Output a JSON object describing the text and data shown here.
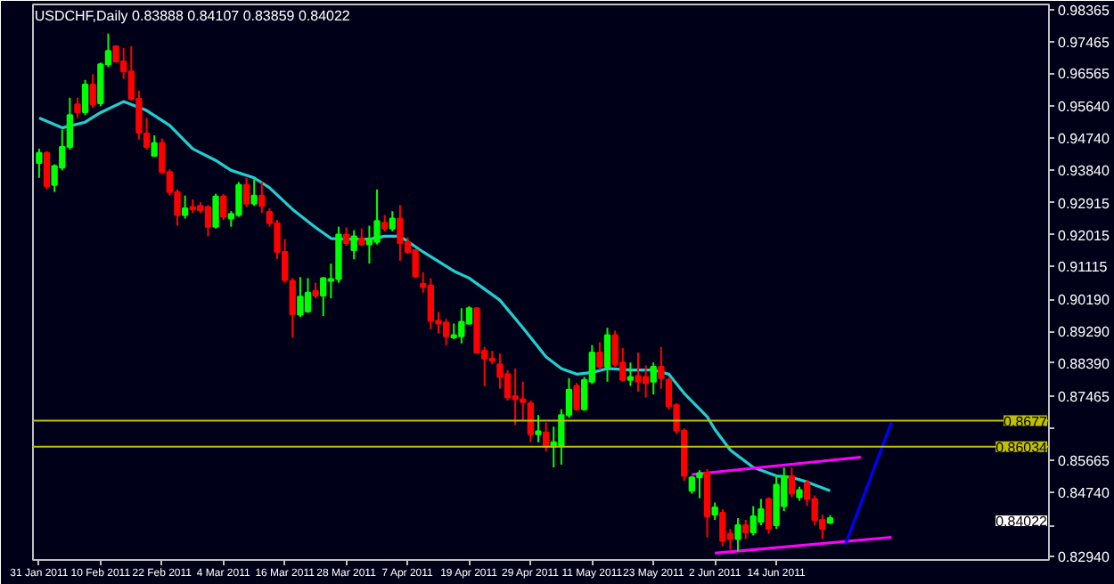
{
  "chart_data": {
    "type": "candlestick",
    "title": "USDCHF,Daily  0.83888 0.84107 0.83859 0.84022",
    "categories": [
      "31 Jan 2011",
      null,
      null,
      null,
      null,
      null,
      null,
      null,
      "10 Feb 2011",
      null,
      null,
      null,
      null,
      null,
      null,
      null,
      "22 Feb 2011",
      null,
      null,
      null,
      null,
      null,
      null,
      null,
      "4 Mar 2011",
      null,
      null,
      null,
      null,
      null,
      null,
      null,
      "16 Mar 2011",
      null,
      null,
      null,
      null,
      null,
      null,
      null,
      "28 Mar 2011",
      null,
      null,
      null,
      null,
      null,
      null,
      null,
      "7 Apr 2011",
      null,
      null,
      null,
      null,
      null,
      null,
      null,
      "19 Apr 2011",
      null,
      null,
      null,
      null,
      null,
      null,
      null,
      "29 Apr 2011",
      null,
      null,
      null,
      null,
      null,
      null,
      null,
      "11 May 2011",
      null,
      null,
      null,
      null,
      null,
      null,
      null,
      "23 May 2011",
      null,
      null,
      null,
      null,
      null,
      null,
      null,
      "2 Jun 2011",
      null,
      null,
      null,
      null,
      null,
      null,
      null,
      "14 Jun 2011",
      null,
      null,
      null,
      null,
      null,
      null,
      null,
      null,
      null,
      null,
      null,
      null,
      null,
      null,
      null,
      null,
      null,
      null,
      null,
      null,
      null,
      null,
      null,
      null,
      null,
      null,
      null,
      null,
      null,
      null,
      null,
      null,
      null,
      null,
      null
    ],
    "ohlc": [
      [
        0.9404,
        0.9444,
        0.9362,
        0.9432
      ],
      [
        0.9432,
        0.9437,
        0.9329,
        0.9339
      ],
      [
        0.9342,
        0.94,
        0.9322,
        0.9395
      ],
      [
        0.9391,
        0.9498,
        0.9383,
        0.9449
      ],
      [
        0.9449,
        0.9588,
        0.9441,
        0.9539
      ],
      [
        0.9569,
        0.9588,
        0.9531,
        0.9547
      ],
      [
        0.9547,
        0.9638,
        0.9539,
        0.9625
      ],
      [
        0.9625,
        0.9654,
        0.9559,
        0.9569
      ],
      [
        0.9572,
        0.9687,
        0.9564,
        0.9682
      ],
      [
        0.9682,
        0.9769,
        0.9674,
        0.972
      ],
      [
        0.9733,
        0.9736,
        0.9687,
        0.969
      ],
      [
        0.969,
        0.9728,
        0.9641,
        0.9662
      ],
      [
        0.9662,
        0.9733,
        0.958,
        0.9585
      ],
      [
        0.9585,
        0.9608,
        0.947,
        0.949
      ],
      [
        0.9487,
        0.9531,
        0.9441,
        0.9449
      ],
      [
        0.9424,
        0.9482,
        0.9421,
        0.946
      ],
      [
        0.946,
        0.9473,
        0.9372,
        0.9378
      ],
      [
        0.9378,
        0.9386,
        0.9312,
        0.9322
      ],
      [
        0.9322,
        0.9329,
        0.9227,
        0.9257
      ],
      [
        0.9257,
        0.9312,
        0.9247,
        0.9276
      ],
      [
        0.928,
        0.9301,
        0.9263,
        0.9273
      ],
      [
        0.9283,
        0.9293,
        0.9263,
        0.927
      ],
      [
        0.928,
        0.9285,
        0.9197,
        0.9224
      ],
      [
        0.9224,
        0.9317,
        0.9219,
        0.9309
      ],
      [
        0.9309,
        0.9316,
        0.9243,
        0.9252
      ],
      [
        0.9247,
        0.9268,
        0.9224,
        0.926
      ],
      [
        0.9257,
        0.935,
        0.9252,
        0.9342
      ],
      [
        0.9342,
        0.9362,
        0.928,
        0.9289
      ],
      [
        0.9289,
        0.9358,
        0.9283,
        0.9312
      ],
      [
        0.9312,
        0.935,
        0.9263,
        0.9283
      ],
      [
        0.9266,
        0.9276,
        0.9224,
        0.9234
      ],
      [
        0.9234,
        0.9243,
        0.9133,
        0.9153
      ],
      [
        0.9153,
        0.9189,
        0.9066,
        0.9074
      ],
      [
        0.9071,
        0.9079,
        0.8912,
        0.8977
      ],
      [
        0.8976,
        0.9082,
        0.8969,
        0.9027
      ],
      [
        0.8985,
        0.9079,
        0.8981,
        0.9038
      ],
      [
        0.9043,
        0.9066,
        0.9022,
        0.903
      ],
      [
        0.903,
        0.9082,
        0.8972,
        0.9079
      ],
      [
        0.9071,
        0.912,
        0.9022,
        0.9076
      ],
      [
        0.9076,
        0.9224,
        0.9066,
        0.9202
      ],
      [
        0.9202,
        0.9222,
        0.917,
        0.9178
      ],
      [
        0.9158,
        0.9214,
        0.9132,
        0.9197
      ],
      [
        0.9191,
        0.9219,
        0.917,
        0.9174
      ],
      [
        0.9174,
        0.9227,
        0.912,
        0.9189
      ],
      [
        0.9181,
        0.9329,
        0.9174,
        0.924
      ],
      [
        0.9235,
        0.9257,
        0.9211,
        0.9219
      ],
      [
        0.9219,
        0.9268,
        0.9211,
        0.9247
      ],
      [
        0.9247,
        0.9285,
        0.9128,
        0.9178
      ],
      [
        0.9181,
        0.9194,
        0.9148,
        0.9153
      ],
      [
        0.9158,
        0.9161,
        0.9079,
        0.9084
      ],
      [
        0.9063,
        0.9096,
        0.9038,
        0.9054
      ],
      [
        0.9058,
        0.9079,
        0.8935,
        0.8959
      ],
      [
        0.8959,
        0.8984,
        0.8923,
        0.8951
      ],
      [
        0.8954,
        0.8964,
        0.889,
        0.8915
      ],
      [
        0.8912,
        0.8951,
        0.8907,
        0.8918
      ],
      [
        0.8915,
        0.8994,
        0.8895,
        0.8956
      ],
      [
        0.8951,
        0.9,
        0.8948,
        0.8994
      ],
      [
        0.8994,
        0.8997,
        0.8866,
        0.8869
      ],
      [
        0.8874,
        0.8885,
        0.8775,
        0.8852
      ],
      [
        0.8852,
        0.8874,
        0.8836,
        0.8846
      ],
      [
        0.8836,
        0.8866,
        0.8767,
        0.88
      ],
      [
        0.8808,
        0.882,
        0.8734,
        0.8742
      ],
      [
        0.8746,
        0.8824,
        0.8665,
        0.8737
      ],
      [
        0.8737,
        0.8787,
        0.8677,
        0.8729
      ],
      [
        0.8726,
        0.8734,
        0.8616,
        0.8639
      ],
      [
        0.8639,
        0.8693,
        0.8616,
        0.8647
      ],
      [
        0.8644,
        0.8672,
        0.859,
        0.8603
      ],
      [
        0.8603,
        0.866,
        0.8545,
        0.8616
      ],
      [
        0.8606,
        0.8709,
        0.8553,
        0.8693
      ],
      [
        0.8693,
        0.8797,
        0.8685,
        0.8764
      ],
      [
        0.8775,
        0.8783,
        0.8705,
        0.8709
      ],
      [
        0.8709,
        0.88,
        0.8705,
        0.8792
      ],
      [
        0.8787,
        0.889,
        0.878,
        0.8869
      ],
      [
        0.8869,
        0.8898,
        0.882,
        0.8829
      ],
      [
        0.8829,
        0.8939,
        0.8787,
        0.8918
      ],
      [
        0.8918,
        0.8931,
        0.8829,
        0.8836
      ],
      [
        0.8841,
        0.8882,
        0.8787,
        0.8792
      ],
      [
        0.8792,
        0.8841,
        0.8775,
        0.88
      ],
      [
        0.8803,
        0.8869,
        0.8759,
        0.8787
      ],
      [
        0.88,
        0.8833,
        0.8742,
        0.8783
      ],
      [
        0.8787,
        0.8841,
        0.8751,
        0.8829
      ],
      [
        0.8829,
        0.8885,
        0.8767,
        0.8797
      ],
      [
        0.8792,
        0.88,
        0.8709,
        0.8718
      ],
      [
        0.8721,
        0.8726,
        0.8639,
        0.8649
      ],
      [
        0.8649,
        0.8655,
        0.8507,
        0.8521
      ],
      [
        0.8479,
        0.8521,
        0.8471,
        0.8517
      ],
      [
        0.8517,
        0.8537,
        0.8458,
        0.8529
      ],
      [
        0.853,
        0.854,
        0.8348,
        0.8407
      ],
      [
        0.8412,
        0.8446,
        0.8397,
        0.8432
      ],
      [
        0.8417,
        0.8427,
        0.8323,
        0.8338
      ],
      [
        0.8358,
        0.8372,
        0.8313,
        0.8343
      ],
      [
        0.8343,
        0.8402,
        0.8308,
        0.8382
      ],
      [
        0.8382,
        0.8397,
        0.8343,
        0.8362
      ],
      [
        0.8362,
        0.8436,
        0.8353,
        0.8407
      ],
      [
        0.8392,
        0.8456,
        0.8382,
        0.8427
      ],
      [
        0.8456,
        0.8461,
        0.8358,
        0.8372
      ],
      [
        0.8382,
        0.852,
        0.8372,
        0.8496
      ],
      [
        0.8436,
        0.8545,
        0.8422,
        0.852
      ],
      [
        0.852,
        0.8545,
        0.8461,
        0.8471
      ],
      [
        0.8461,
        0.8491,
        0.8451,
        0.8481
      ],
      [
        0.8501,
        0.851,
        0.8436,
        0.8456
      ],
      [
        0.8456,
        0.8466,
        0.8382,
        0.8397
      ],
      [
        0.8397,
        0.8412,
        0.8343,
        0.8372
      ],
      [
        0.83888,
        0.84107,
        0.83859,
        0.84022
      ],
      null,
      null,
      null,
      null,
      null,
      null,
      null,
      null,
      null,
      null,
      null,
      null,
      null,
      null,
      null,
      null,
      null,
      null,
      null,
      null,
      null,
      null,
      null,
      null,
      null,
      null,
      null,
      null
    ],
    "colors": [
      "#00ff00",
      "#ff0000",
      "#00ff00",
      "#00ff00",
      "#00ff00",
      "#ff0000",
      "#00ff00",
      "#ff0000",
      "#00ff00",
      "#00ff00",
      "#ff0000",
      "#ff0000",
      "#ff0000",
      "#ff0000",
      "#ff0000",
      "#00ff00",
      "#ff0000",
      "#ff0000",
      "#ff0000",
      "#00ff00",
      "#ff0000",
      "#ff0000",
      "#ff0000",
      "#00ff00",
      "#ff0000",
      "#00ff00",
      "#00ff00",
      "#ff0000",
      "#00ff00",
      "#ff0000",
      "#ff0000",
      "#ff0000",
      "#ff0000",
      "#ff0000",
      "#00ff00",
      "#00ff00",
      "#ff0000",
      "#00ff00",
      "#00ff00",
      "#00ff00",
      "#ff0000",
      "#00ff00",
      "#ff0000",
      "#00ff00",
      "#00ff00",
      "#ff0000",
      "#00ff00",
      "#ff0000",
      "#ff0000",
      "#ff0000",
      "#ff0000",
      "#ff0000",
      "#ff0000",
      "#ff0000",
      "#00ff00",
      "#00ff00",
      "#00ff00",
      "#ff0000",
      "#ff0000",
      "#ff0000",
      "#ff0000",
      "#ff0000",
      "#ff0000",
      "#ff0000",
      "#ff0000",
      "#00ff00",
      "#ff0000",
      "#00ff00",
      "#00ff00",
      "#00ff00",
      "#ff0000",
      "#00ff00",
      "#00ff00",
      "#ff0000",
      "#00ff00",
      "#ff0000",
      "#ff0000",
      "#00ff00",
      "#ff0000",
      "#ff0000",
      "#00ff00",
      "#ff0000",
      "#ff0000",
      "#ff0000",
      "#ff0000",
      "#00ff00",
      "#00ff00",
      "#ff0000",
      "#00ff00",
      "#ff0000",
      "#ff0000",
      "#00ff00",
      "#ff0000",
      "#00ff00",
      "#00ff00",
      "#ff0000",
      "#00ff00",
      "#00ff00",
      "#ff0000",
      "#00ff00",
      "#ff0000",
      "#ff0000",
      "#ff0000",
      "#00ff00",
      null,
      null,
      null,
      null,
      null,
      null,
      null,
      null,
      null,
      null,
      null,
      null,
      null,
      null,
      null,
      null,
      null,
      null,
      null,
      null,
      null,
      null,
      null,
      null,
      null,
      null,
      null,
      null
    ],
    "series": [
      {
        "type": "line",
        "color": "#20d0d0",
        "values": [
          0.9531,
          null,
          null,
          0.9503,
          null,
          null,
          0.9519,
          null,
          0.9546,
          null,
          null,
          0.9577,
          null,
          null,
          0.9552,
          null,
          null,
          0.951,
          null,
          null,
          0.9444,
          null,
          null,
          0.9411,
          null,
          0.9383,
          null,
          null,
          0.9362,
          null,
          0.9334,
          null,
          null,
          0.9273,
          null,
          null,
          0.9222,
          null,
          0.9191,
          null,
          0.9189,
          null,
          null,
          0.9189,
          null,
          0.9197,
          null,
          0.9197,
          null,
          null,
          0.9153,
          null,
          null,
          null,
          0.9099,
          null,
          0.9079,
          null,
          null,
          null,
          0.9017,
          null,
          null,
          0.8939,
          null,
          null,
          0.8857,
          null,
          0.8824,
          null,
          0.8808,
          null,
          0.8813,
          null,
          0.8824,
          null,
          null,
          0.882,
          null,
          null,
          0.882,
          null,
          0.8808,
          null,
          0.8754,
          null,
          null,
          0.8688,
          0.8652,
          null,
          0.8594,
          null,
          null,
          0.8545,
          null,
          null,
          0.8521,
          null,
          0.8517,
          null,
          0.8504,
          null,
          null,
          0.8479,
          null,
          null,
          null,
          null,
          null,
          null,
          null,
          null,
          null,
          null,
          null,
          null,
          null,
          null,
          null,
          null,
          null,
          null,
          null,
          null,
          null,
          null,
          null,
          null,
          null,
          null,
          null,
          null
        ]
      },
      {
        "type": "line",
        "color": "#ff00ff",
        "values": [
          null,
          null,
          null,
          null,
          null,
          null,
          null,
          null,
          null,
          null,
          null,
          null,
          null,
          null,
          null,
          null,
          null,
          null,
          null,
          null,
          null,
          null,
          null,
          null,
          null,
          null,
          null,
          null,
          null,
          null,
          null,
          null,
          null,
          null,
          null,
          null,
          null,
          null,
          null,
          null,
          null,
          null,
          null,
          null,
          null,
          null,
          null,
          null,
          null,
          null,
          null,
          null,
          null,
          null,
          null,
          null,
          null,
          null,
          null,
          null,
          null,
          null,
          null,
          null,
          null,
          null,
          null,
          null,
          null,
          null,
          null,
          null,
          null,
          null,
          null,
          null,
          null,
          null,
          null,
          null,
          null,
          null,
          null,
          null,
          null,
          0.8525,
          null,
          null,
          null,
          null,
          null,
          null,
          null,
          null,
          null,
          null,
          null,
          null,
          null,
          null,
          null,
          null,
          null,
          null,
          null,
          null,
          null,
          0.8574,
          null,
          null,
          null,
          null,
          null,
          null,
          null,
          null,
          null,
          null,
          null,
          null,
          null,
          null,
          null,
          null,
          null,
          null,
          null,
          null,
          null,
          null,
          null,
          null
        ]
      },
      {
        "type": "line",
        "color": "#ff00ff",
        "values": [
          null,
          null,
          null,
          null,
          null,
          null,
          null,
          null,
          null,
          null,
          null,
          null,
          null,
          null,
          null,
          null,
          null,
          null,
          null,
          null,
          null,
          null,
          null,
          null,
          null,
          null,
          null,
          null,
          null,
          null,
          null,
          null,
          null,
          null,
          null,
          null,
          null,
          null,
          null,
          null,
          null,
          null,
          null,
          null,
          null,
          null,
          null,
          null,
          null,
          null,
          null,
          null,
          null,
          null,
          null,
          null,
          null,
          null,
          null,
          null,
          null,
          null,
          null,
          null,
          null,
          null,
          null,
          null,
          null,
          null,
          null,
          null,
          null,
          null,
          null,
          null,
          null,
          null,
          null,
          null,
          null,
          null,
          null,
          null,
          null,
          null,
          null,
          null,
          0.8303,
          null,
          null,
          null,
          null,
          null,
          null,
          null,
          null,
          null,
          null,
          null,
          null,
          null,
          null,
          null,
          null,
          null,
          null,
          null,
          null,
          null,
          null,
          0.8348,
          null,
          null,
          null,
          null,
          null,
          null,
          null,
          null,
          null,
          null,
          null,
          null,
          null,
          null,
          null,
          null,
          null,
          null,
          null,
          null
        ]
      },
      {
        "type": "line",
        "color": "#0000ff",
        "values": [
          null,
          null,
          null,
          null,
          null,
          null,
          null,
          null,
          null,
          null,
          null,
          null,
          null,
          null,
          null,
          null,
          null,
          null,
          null,
          null,
          null,
          null,
          null,
          null,
          null,
          null,
          null,
          null,
          null,
          null,
          null,
          null,
          null,
          null,
          null,
          null,
          null,
          null,
          null,
          null,
          null,
          null,
          null,
          null,
          null,
          null,
          null,
          null,
          null,
          null,
          null,
          null,
          null,
          null,
          null,
          null,
          null,
          null,
          null,
          null,
          null,
          null,
          null,
          null,
          null,
          null,
          null,
          null,
          null,
          null,
          null,
          null,
          null,
          null,
          null,
          null,
          null,
          null,
          null,
          null,
          null,
          null,
          null,
          null,
          null,
          null,
          null,
          null,
          null,
          null,
          null,
          null,
          null,
          null,
          null,
          null,
          null,
          null,
          null,
          null,
          null,
          null,
          null,
          null,
          null,
          0.8328,
          null,
          null,
          null,
          null,
          null,
          0.8673,
          null,
          null,
          null,
          null,
          null,
          null,
          null,
          null,
          null,
          null,
          null,
          null,
          null,
          null,
          null,
          null,
          null,
          null,
          null,
          null
        ]
      }
    ],
    "ref_lines": [
      {
        "axis": "y",
        "value": 0.8677,
        "label": "0.8677",
        "color": "#c0c000"
      },
      {
        "axis": "y",
        "value": 0.86034,
        "label": "0.86034",
        "color": "#c0c000"
      }
    ],
    "annotations": [
      "0.84022"
    ],
    "ylim": [
      0.8284,
      0.9851
    ],
    "yticks": [
      {
        "value": 0.98365,
        "label": "0.98365"
      },
      {
        "value": 0.97465,
        "label": "0.97465"
      },
      {
        "value": 0.96565,
        "label": "0.96565"
      },
      {
        "value": 0.9564,
        "label": "0.95640"
      },
      {
        "value": 0.9474,
        "label": "0.94740"
      },
      {
        "value": 0.9384,
        "label": "0.93840"
      },
      {
        "value": 0.92915,
        "label": "0.92915"
      },
      {
        "value": 0.92015,
        "label": "0.92015"
      },
      {
        "value": 0.91115,
        "label": "0.91115"
      },
      {
        "value": 0.9019,
        "label": "0.90190"
      },
      {
        "value": 0.8929,
        "label": "0.89290"
      },
      {
        "value": 0.8839,
        "label": "0.88390"
      },
      {
        "value": 0.87465,
        "label": "0.87465"
      },
      {
        "value": 0.86565,
        "label": null
      },
      {
        "value": 0.85665,
        "label": "0.85665"
      },
      {
        "value": 0.8474,
        "label": "0.84740"
      },
      {
        "value": 0.83815,
        "label": null
      },
      {
        "value": 0.8294,
        "label": "0.82940"
      }
    ]
  }
}
